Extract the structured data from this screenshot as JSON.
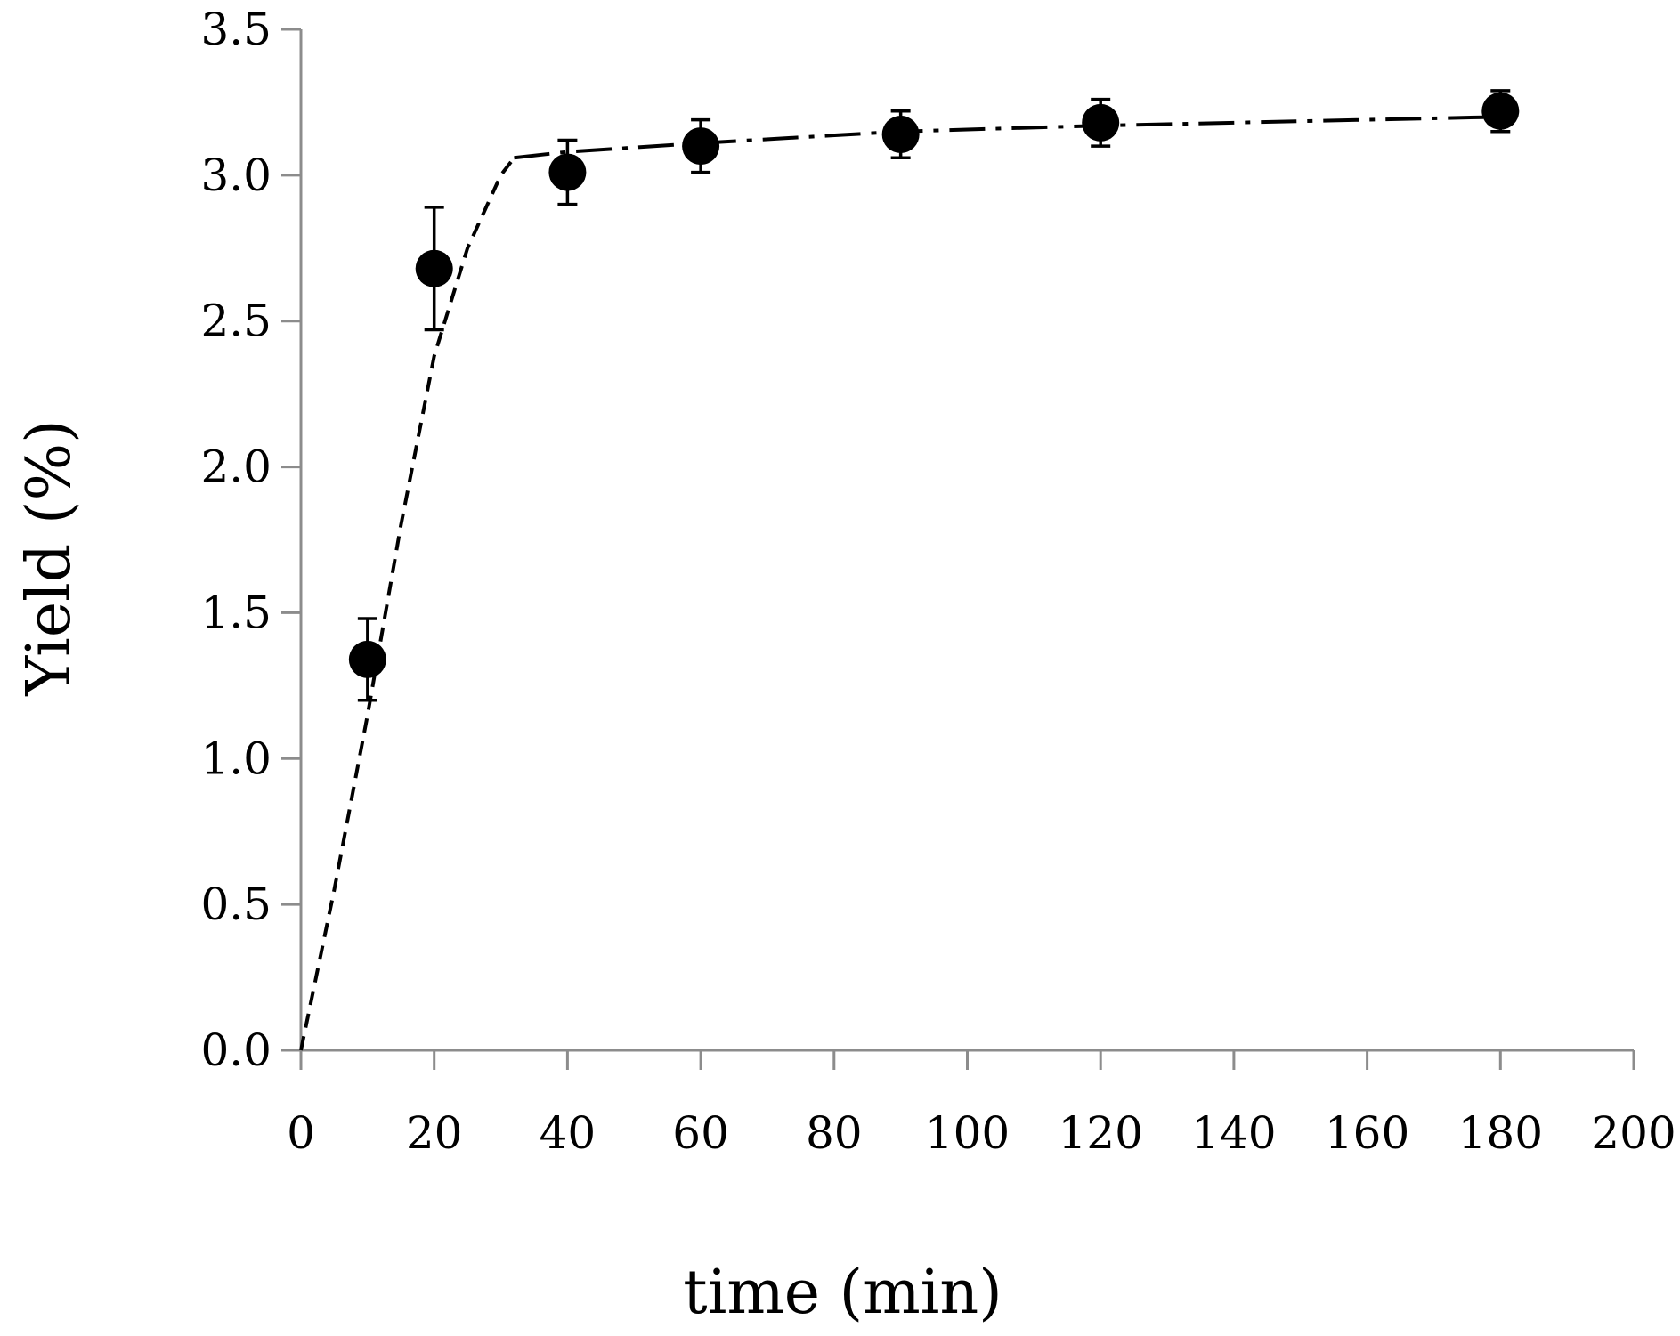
{
  "chart_data": {
    "type": "scatter",
    "title": "",
    "xlabel": "time (min)",
    "ylabel": "Yield (%)",
    "xlim": [
      0,
      200
    ],
    "ylim": [
      0,
      3.5
    ],
    "x_ticks": [
      0,
      20,
      40,
      60,
      80,
      100,
      120,
      140,
      160,
      180,
      200
    ],
    "y_ticks": [
      0.0,
      0.5,
      1.0,
      1.5,
      2.0,
      2.5,
      3.0,
      3.5
    ],
    "x_tick_labels": [
      "0",
      "20",
      "40",
      "60",
      "80",
      "100",
      "120",
      "140",
      "160",
      "180",
      "200"
    ],
    "y_tick_labels": [
      "0.0",
      "0.5",
      "1.0",
      "1.5",
      "2.0",
      "2.5",
      "3.0",
      "3.5"
    ],
    "grid": false,
    "legend": "none",
    "points": {
      "x": [
        10,
        20,
        40,
        60,
        90,
        120,
        180
      ],
      "y": [
        1.34,
        2.68,
        3.01,
        3.1,
        3.14,
        3.18,
        3.22
      ],
      "error": [
        0.14,
        0.21,
        0.11,
        0.09,
        0.08,
        0.08,
        0.07
      ],
      "marker": "filled-circle",
      "color": "#000000"
    },
    "fit_lines": [
      {
        "style": "dashed",
        "color": "#000000",
        "x": [
          0,
          5,
          10,
          15,
          20,
          25,
          28,
          30,
          32
        ],
        "y": [
          0.0,
          0.55,
          1.15,
          1.8,
          2.38,
          2.75,
          2.9,
          3.0,
          3.06
        ]
      },
      {
        "style": "dash-dot",
        "color": "#000000",
        "x": [
          32,
          40,
          60,
          90,
          120,
          180
        ],
        "y": [
          3.06,
          3.08,
          3.11,
          3.15,
          3.17,
          3.2
        ]
      }
    ],
    "axis_color": "#8c8c8c"
  }
}
